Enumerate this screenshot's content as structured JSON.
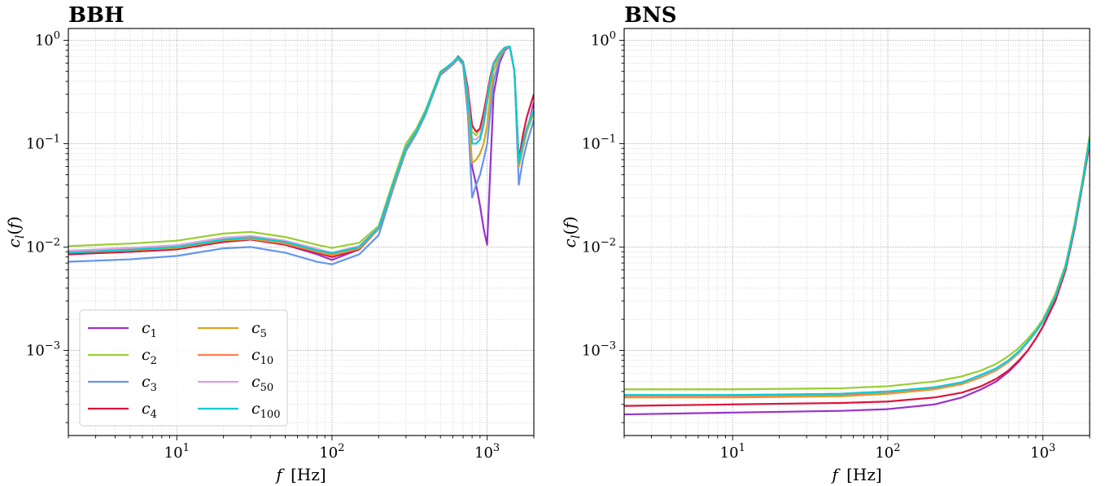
{
  "chart_data": [
    {
      "type": "line",
      "title": "BBH",
      "xlabel": "f [Hz]",
      "ylabel": "c_l(f)",
      "xscale": "log",
      "yscale": "log",
      "xlim": [
        2,
        2000
      ],
      "ylim": [
        0.00015,
        1.3
      ],
      "grid": true,
      "legend": "lower-left, 2 columns",
      "x_ticks": [
        {
          "v": 10,
          "b": "10",
          "e": "1"
        },
        {
          "v": 100,
          "b": "10",
          "e": "2"
        },
        {
          "v": 1000,
          "b": "10",
          "e": "3"
        }
      ],
      "y_ticks": [
        {
          "v": 0.001,
          "b": "10",
          "e": "−3"
        },
        {
          "v": 0.01,
          "b": "10",
          "e": "−2"
        },
        {
          "v": 0.1,
          "b": "10",
          "e": "−1"
        },
        {
          "v": 1,
          "b": "10",
          "e": "0"
        }
      ],
      "series": [
        {
          "name": "c_1",
          "color": "#9932cc",
          "x": [
            2,
            5,
            10,
            20,
            30,
            50,
            80,
            100,
            150,
            200,
            250,
            300,
            350,
            400,
            500,
            600,
            650,
            700,
            750,
            800,
            850,
            900,
            950,
            1000,
            1050,
            1100,
            1200,
            1300,
            1400,
            1500,
            1600,
            1700,
            1800,
            2000
          ],
          "y": [
            0.0085,
            0.009,
            0.0095,
            0.0112,
            0.0118,
            0.0105,
            0.0085,
            0.0075,
            0.0095,
            0.015,
            0.04,
            0.09,
            0.13,
            0.2,
            0.48,
            0.6,
            0.68,
            0.6,
            0.2,
            0.06,
            0.04,
            0.025,
            0.015,
            0.0105,
            0.06,
            0.3,
            0.6,
            0.8,
            0.87,
            0.5,
            0.06,
            0.09,
            0.13,
            0.25
          ]
        },
        {
          "name": "c_2",
          "color": "#9acd32",
          "x": [
            2,
            5,
            10,
            20,
            30,
            50,
            80,
            100,
            150,
            200,
            250,
            300,
            350,
            400,
            500,
            600,
            650,
            700,
            750,
            800,
            850,
            900,
            950,
            1000,
            1050,
            1100,
            1200,
            1300,
            1400,
            1500,
            1600,
            1700,
            1800,
            2000
          ],
          "y": [
            0.0102,
            0.0108,
            0.0115,
            0.0135,
            0.014,
            0.0125,
            0.0105,
            0.0098,
            0.011,
            0.016,
            0.045,
            0.1,
            0.14,
            0.21,
            0.5,
            0.6,
            0.68,
            0.6,
            0.3,
            0.13,
            0.12,
            0.14,
            0.2,
            0.3,
            0.45,
            0.6,
            0.75,
            0.85,
            0.87,
            0.5,
            0.07,
            0.1,
            0.13,
            0.2
          ]
        },
        {
          "name": "c_3",
          "color": "#6495ed",
          "x": [
            2,
            5,
            10,
            20,
            30,
            50,
            80,
            100,
            150,
            200,
            250,
            300,
            350,
            400,
            500,
            600,
            650,
            700,
            750,
            800,
            850,
            900,
            950,
            1000,
            1050,
            1100,
            1200,
            1300,
            1400,
            1500,
            1600,
            1700,
            1800,
            2000
          ],
          "y": [
            0.0072,
            0.0076,
            0.0082,
            0.0097,
            0.01,
            0.0088,
            0.0072,
            0.0068,
            0.0085,
            0.013,
            0.038,
            0.085,
            0.125,
            0.19,
            0.46,
            0.58,
            0.66,
            0.58,
            0.2,
            0.03,
            0.04,
            0.05,
            0.07,
            0.1,
            0.2,
            0.4,
            0.65,
            0.82,
            0.87,
            0.5,
            0.04,
            0.07,
            0.1,
            0.17
          ]
        },
        {
          "name": "c_4",
          "color": "#dc143c",
          "x": [
            2,
            5,
            10,
            20,
            30,
            50,
            80,
            100,
            150,
            200,
            250,
            300,
            350,
            400,
            500,
            600,
            650,
            700,
            750,
            800,
            850,
            900,
            950,
            1000,
            1050,
            1100,
            1200,
            1300,
            1400,
            1500,
            1600,
            1700,
            1800,
            2000
          ],
          "y": [
            0.0085,
            0.009,
            0.0095,
            0.0112,
            0.0118,
            0.0105,
            0.0088,
            0.008,
            0.0095,
            0.015,
            0.04,
            0.09,
            0.13,
            0.2,
            0.48,
            0.6,
            0.7,
            0.62,
            0.35,
            0.15,
            0.13,
            0.14,
            0.2,
            0.3,
            0.45,
            0.6,
            0.75,
            0.85,
            0.87,
            0.5,
            0.07,
            0.12,
            0.18,
            0.3
          ]
        },
        {
          "name": "c_5",
          "color": "#daa520",
          "x": [
            2,
            5,
            10,
            20,
            30,
            50,
            80,
            100,
            150,
            200,
            250,
            300,
            350,
            400,
            500,
            600,
            650,
            700,
            750,
            800,
            850,
            900,
            950,
            1000,
            1050,
            1100,
            1200,
            1300,
            1400,
            1500,
            1600,
            1700,
            1800,
            2000
          ],
          "y": [
            0.0088,
            0.0093,
            0.0098,
            0.0116,
            0.012,
            0.0108,
            0.009,
            0.0083,
            0.0097,
            0.015,
            0.04,
            0.09,
            0.13,
            0.2,
            0.48,
            0.6,
            0.68,
            0.6,
            0.25,
            0.065,
            0.07,
            0.08,
            0.1,
            0.15,
            0.3,
            0.5,
            0.7,
            0.84,
            0.87,
            0.5,
            0.06,
            0.09,
            0.13,
            0.2
          ]
        },
        {
          "name": "c_10",
          "color": "#ff7f50",
          "x": [
            2,
            5,
            10,
            20,
            30,
            50,
            80,
            100,
            150,
            200,
            250,
            300,
            350,
            400,
            500,
            600,
            650,
            700,
            750,
            800,
            850,
            900,
            950,
            1000,
            1050,
            1100,
            1200,
            1300,
            1400,
            1500,
            1600,
            1700,
            1800,
            2000
          ],
          "y": [
            0.009,
            0.0095,
            0.01,
            0.0118,
            0.0123,
            0.011,
            0.0092,
            0.0085,
            0.0099,
            0.015,
            0.041,
            0.09,
            0.13,
            0.2,
            0.48,
            0.6,
            0.69,
            0.61,
            0.3,
            0.1,
            0.1,
            0.11,
            0.15,
            0.25,
            0.4,
            0.58,
            0.74,
            0.85,
            0.87,
            0.5,
            0.065,
            0.1,
            0.14,
            0.22
          ]
        },
        {
          "name": "c_50",
          "color": "#dda0dd",
          "x": [
            2,
            5,
            10,
            20,
            30,
            50,
            80,
            100,
            150,
            200,
            250,
            300,
            350,
            400,
            500,
            600,
            650,
            700,
            750,
            800,
            850,
            900,
            950,
            1000,
            1050,
            1100,
            1200,
            1300,
            1400,
            1500,
            1600,
            1700,
            1800,
            2000
          ],
          "y": [
            0.0092,
            0.0098,
            0.0104,
            0.0123,
            0.0128,
            0.0115,
            0.0096,
            0.0088,
            0.0102,
            0.0155,
            0.042,
            0.092,
            0.132,
            0.2,
            0.49,
            0.61,
            0.69,
            0.61,
            0.3,
            0.11,
            0.11,
            0.12,
            0.17,
            0.27,
            0.42,
            0.59,
            0.75,
            0.85,
            0.87,
            0.5,
            0.065,
            0.1,
            0.14,
            0.22
          ]
        },
        {
          "name": "c_100",
          "color": "#00ced1",
          "x": [
            2,
            5,
            10,
            20,
            30,
            50,
            80,
            100,
            150,
            200,
            250,
            300,
            350,
            400,
            500,
            600,
            650,
            700,
            750,
            800,
            850,
            900,
            950,
            1000,
            1050,
            1100,
            1200,
            1300,
            1400,
            1500,
            1600,
            1700,
            1800,
            2000
          ],
          "y": [
            0.0088,
            0.0094,
            0.01,
            0.0118,
            0.0124,
            0.0112,
            0.0093,
            0.0087,
            0.01,
            0.0153,
            0.042,
            0.092,
            0.132,
            0.2,
            0.49,
            0.61,
            0.69,
            0.61,
            0.28,
            0.1,
            0.1,
            0.11,
            0.16,
            0.26,
            0.41,
            0.58,
            0.74,
            0.85,
            0.87,
            0.5,
            0.065,
            0.1,
            0.14,
            0.21
          ]
        }
      ]
    },
    {
      "type": "line",
      "title": "BNS",
      "xlabel": "f [Hz]",
      "ylabel": "c_l(f)",
      "xscale": "log",
      "yscale": "log",
      "xlim": [
        2,
        2000
      ],
      "ylim": [
        0.00015,
        1.3
      ],
      "grid": true,
      "x_ticks": [
        {
          "v": 10,
          "b": "10",
          "e": "1"
        },
        {
          "v": 100,
          "b": "10",
          "e": "2"
        },
        {
          "v": 1000,
          "b": "10",
          "e": "3"
        }
      ],
      "y_ticks": [
        {
          "v": 0.001,
          "b": "10",
          "e": "−3"
        },
        {
          "v": 0.01,
          "b": "10",
          "e": "−2"
        },
        {
          "v": 0.1,
          "b": "10",
          "e": "−1"
        },
        {
          "v": 1,
          "b": "10",
          "e": "0"
        }
      ],
      "series": [
        {
          "name": "c_1",
          "color": "#9932cc",
          "x": [
            2,
            10,
            50,
            100,
            200,
            300,
            400,
            500,
            600,
            700,
            800,
            900,
            1000,
            1200,
            1400,
            1600,
            1800,
            2000
          ],
          "y": [
            0.00024,
            0.00025,
            0.00026,
            0.00027,
            0.0003,
            0.00035,
            0.00042,
            0.0005,
            0.00062,
            0.00078,
            0.001,
            0.0013,
            0.0017,
            0.003,
            0.006,
            0.015,
            0.04,
            0.1
          ]
        },
        {
          "name": "c_2",
          "color": "#9acd32",
          "x": [
            2,
            10,
            50,
            100,
            200,
            300,
            400,
            500,
            600,
            700,
            800,
            900,
            1000,
            1200,
            1400,
            1600,
            1800,
            2000
          ],
          "y": [
            0.00042,
            0.00042,
            0.00043,
            0.00045,
            0.0005,
            0.00056,
            0.00064,
            0.00074,
            0.00088,
            0.00106,
            0.0013,
            0.0016,
            0.002,
            0.0035,
            0.0068,
            0.017,
            0.045,
            0.12
          ]
        },
        {
          "name": "c_3",
          "color": "#6495ed",
          "x": [
            2,
            10,
            50,
            100,
            200,
            300,
            400,
            500,
            600,
            700,
            800,
            900,
            1000,
            1200,
            1400,
            1600,
            1800,
            2000
          ],
          "y": [
            0.00036,
            0.00036,
            0.00037,
            0.00039,
            0.00043,
            0.00049,
            0.00057,
            0.00066,
            0.00079,
            0.00096,
            0.0012,
            0.0015,
            0.0019,
            0.0033,
            0.0064,
            0.016,
            0.042,
            0.11
          ]
        },
        {
          "name": "c_4",
          "color": "#dc143c",
          "x": [
            2,
            10,
            50,
            100,
            200,
            300,
            400,
            500,
            600,
            700,
            800,
            900,
            1000,
            1200,
            1400,
            1600,
            1800,
            2000
          ],
          "y": [
            0.00029,
            0.0003,
            0.00031,
            0.00032,
            0.00035,
            0.00039,
            0.00045,
            0.00053,
            0.00064,
            0.0008,
            0.001,
            0.0013,
            0.0017,
            0.003,
            0.006,
            0.015,
            0.04,
            0.1
          ]
        },
        {
          "name": "c_5",
          "color": "#daa520",
          "x": [
            2,
            10,
            50,
            100,
            200,
            300,
            400,
            500,
            600,
            700,
            800,
            900,
            1000,
            1200,
            1400,
            1600,
            1800,
            2000
          ],
          "y": [
            0.00035,
            0.00035,
            0.00036,
            0.00038,
            0.00042,
            0.00047,
            0.00055,
            0.00064,
            0.00077,
            0.00094,
            0.0012,
            0.0015,
            0.0019,
            0.0033,
            0.0064,
            0.016,
            0.042,
            0.11
          ]
        },
        {
          "name": "c_10",
          "color": "#ff7f50",
          "x": [
            2,
            10,
            50,
            100,
            200,
            300,
            400,
            500,
            600,
            700,
            800,
            900,
            1000,
            1200,
            1400,
            1600,
            1800,
            2000
          ],
          "y": [
            0.00036,
            0.00036,
            0.00037,
            0.00039,
            0.00043,
            0.00048,
            0.00056,
            0.00065,
            0.00078,
            0.00095,
            0.0012,
            0.0015,
            0.0019,
            0.0033,
            0.0064,
            0.016,
            0.042,
            0.11
          ]
        },
        {
          "name": "c_50",
          "color": "#dda0dd",
          "x": [
            2,
            10,
            50,
            100,
            200,
            300,
            400,
            500,
            600,
            700,
            800,
            900,
            1000,
            1200,
            1400,
            1600,
            1800,
            2000
          ],
          "y": [
            0.00037,
            0.00037,
            0.00038,
            0.0004,
            0.00044,
            0.00049,
            0.00057,
            0.00066,
            0.00079,
            0.00096,
            0.0012,
            0.0015,
            0.0019,
            0.0033,
            0.0064,
            0.016,
            0.042,
            0.11
          ]
        },
        {
          "name": "c_100",
          "color": "#00ced1",
          "x": [
            2,
            10,
            50,
            100,
            200,
            300,
            400,
            500,
            600,
            700,
            800,
            900,
            1000,
            1200,
            1400,
            1600,
            1800,
            2000
          ],
          "y": [
            0.00037,
            0.00037,
            0.00038,
            0.0004,
            0.00044,
            0.00049,
            0.00058,
            0.00067,
            0.0008,
            0.00098,
            0.00122,
            0.00152,
            0.0019,
            0.0033,
            0.0064,
            0.016,
            0.042,
            0.11
          ]
        }
      ]
    }
  ]
}
